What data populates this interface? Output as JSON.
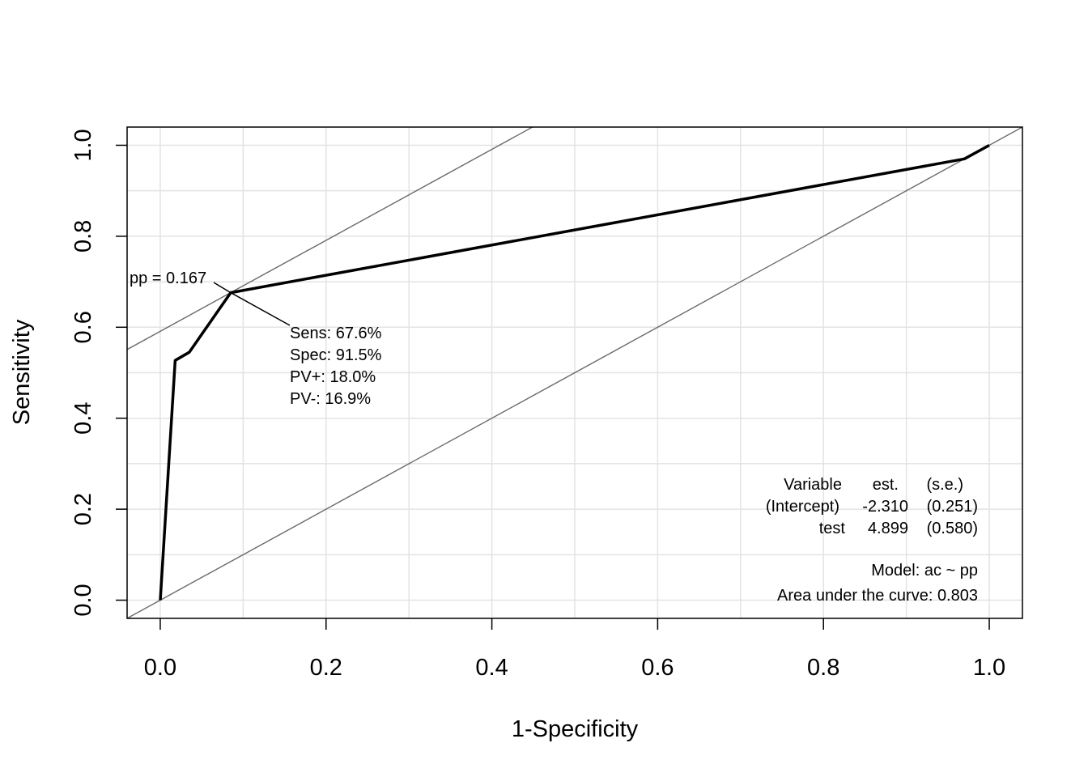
{
  "chart_data": {
    "type": "line",
    "title": "",
    "xlabel": "1-Specificity",
    "ylabel": "Sensitivity",
    "xlim": [
      -0.04,
      1.04
    ],
    "ylim": [
      -0.04,
      1.04
    ],
    "grid": true,
    "x_ticks": [
      "0.0",
      "0.2",
      "0.4",
      "0.6",
      "0.8",
      "1.0"
    ],
    "y_ticks": [
      "0.0",
      "0.2",
      "0.4",
      "0.6",
      "0.8",
      "1.0"
    ],
    "series": [
      {
        "x": [
          0.0,
          0.018,
          0.035,
          0.085,
          0.97,
          1.0
        ],
        "y": [
          0.0,
          0.527,
          0.545,
          0.676,
          0.97,
          1.0
        ]
      }
    ],
    "reference_lines": [
      {
        "intercept": 0.0,
        "slope": 1.0
      },
      {
        "intercept": 0.591,
        "slope": 1.0
      }
    ],
    "cutoff_annotation": {
      "point": {
        "x": 0.085,
        "y": 0.676
      },
      "label": "pp = 0.167",
      "lines": [
        "Sens: 67.6%",
        "Spec: 91.5%",
        "PV+: 18.0%",
        "PV-: 16.9%"
      ]
    },
    "model_table": {
      "headers": [
        "Variable",
        "est.",
        "(s.e.)"
      ],
      "rows": [
        [
          "(Intercept)",
          "-2.310",
          "(0.251)"
        ],
        [
          "test",
          "4.899",
          "(0.580)"
        ]
      ],
      "model": "Model:  ac ~ pp",
      "auc": "Area under the curve: 0.803"
    }
  }
}
